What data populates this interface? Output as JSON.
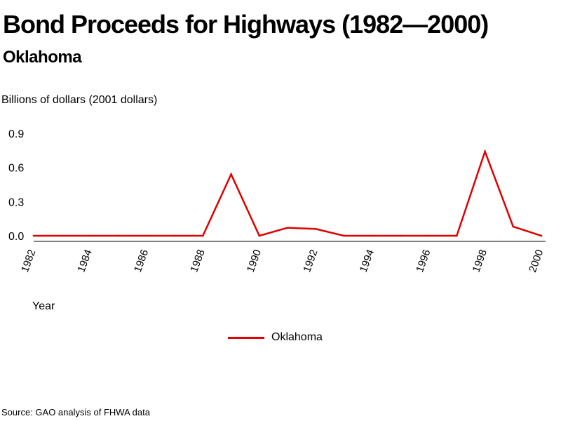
{
  "title": "Bond Proceeds for Highways (1982—2000)",
  "subtitle": "Oklahoma",
  "source": "Source: GAO analysis of FHWA data",
  "chart_data": {
    "type": "line",
    "title": "Bond Proceeds for Highways (1982—2000)",
    "subtitle": "Oklahoma",
    "ylabel": "Billions of dollars (2001 dollars)",
    "xlabel": "Year",
    "ylim": [
      0,
      0.9
    ],
    "yticks": [
      "0.0",
      "0.3",
      "0.6",
      "0.9"
    ],
    "xlim": [
      1982,
      2000
    ],
    "xticks": [
      "1982",
      "1984",
      "1986",
      "1988",
      "1990",
      "1992",
      "1994",
      "1996",
      "1998",
      "2000"
    ],
    "x": [
      1982,
      1983,
      1984,
      1985,
      1986,
      1987,
      1988,
      1989,
      1990,
      1991,
      1992,
      1993,
      1994,
      1995,
      1996,
      1997,
      1998,
      1999,
      2000
    ],
    "series": [
      {
        "name": "Oklahoma",
        "color": "#e00000",
        "values": [
          0.0,
          0.0,
          0.0,
          0.0,
          0.0,
          0.0,
          0.0,
          0.54,
          0.0,
          0.07,
          0.06,
          0.0,
          0.0,
          0.0,
          0.0,
          0.0,
          0.74,
          0.08,
          0.0
        ]
      }
    ],
    "grid": false,
    "legend": "bottom-center"
  }
}
